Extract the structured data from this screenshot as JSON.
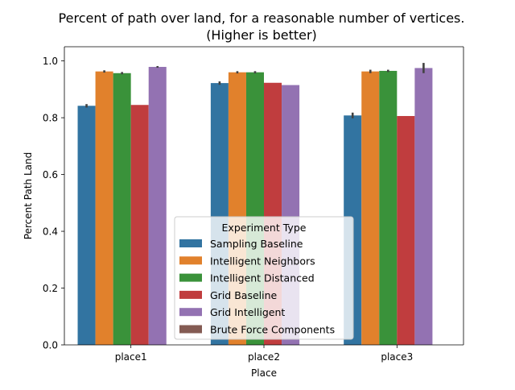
{
  "chart_data": {
    "type": "bar",
    "title_line1": "Percent of path over land, for a reasonable number of vertices.",
    "title_line2": "(Higher is better)",
    "xlabel": "Place",
    "ylabel": "Percent Path Land",
    "categories": [
      "place1",
      "place2",
      "place3"
    ],
    "ylim": [
      0,
      1.05
    ],
    "yticks": [
      "0.0",
      "0.2",
      "0.4",
      "0.6",
      "0.8",
      "1.0"
    ],
    "grid": false,
    "legend": {
      "title": "Experiment Type",
      "placement": "bottom-center"
    },
    "series": [
      {
        "name": "Sampling Baseline",
        "color": "#3274a1",
        "values": [
          0.842,
          0.922,
          0.808
        ],
        "err": [
          0.006,
          0.006,
          0.01
        ]
      },
      {
        "name": "Intelligent Neighbors",
        "color": "#e1812c",
        "values": [
          0.963,
          0.96,
          0.963
        ],
        "err": [
          0.004,
          0.004,
          0.006
        ]
      },
      {
        "name": "Intelligent Distanced",
        "color": "#3a923a",
        "values": [
          0.957,
          0.96,
          0.965
        ],
        "err": [
          0.004,
          0.004,
          0.004
        ]
      },
      {
        "name": "Grid Baseline",
        "color": "#c03d3e",
        "values": [
          0.845,
          0.923,
          0.806
        ],
        "err": [
          0,
          0,
          0
        ]
      },
      {
        "name": "Grid Intelligent",
        "color": "#9372b2",
        "values": [
          0.979,
          0.915,
          0.975
        ],
        "err": [
          0.003,
          0,
          0.018
        ]
      },
      {
        "name": "Brute Force Components",
        "color": "#845b53",
        "values": [
          null,
          null,
          null
        ],
        "err": [
          0,
          0,
          0
        ]
      }
    ]
  }
}
